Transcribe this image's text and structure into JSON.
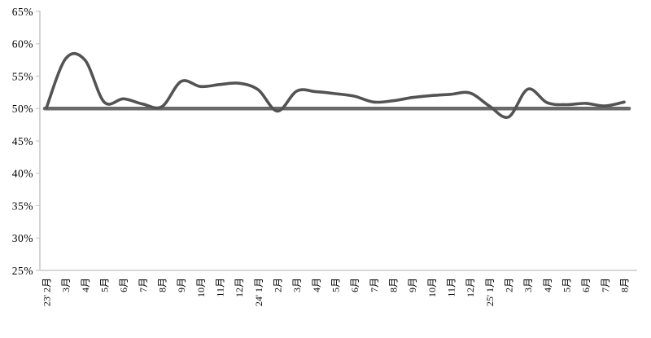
{
  "page": {
    "background": "#ffffff"
  },
  "chart_data": {
    "type": "line",
    "title": "",
    "xlabel": "",
    "ylabel": "",
    "grid": false,
    "legend": "none",
    "categories": [
      "23' 2月",
      "3月",
      "4月",
      "5月",
      "6月",
      "7月",
      "8月",
      "9月",
      "10月",
      "11月",
      "12月",
      "24' 1月",
      "2月",
      "3月",
      "4月",
      "5月",
      "6月",
      "7月",
      "8月",
      "9月",
      "10月",
      "11月",
      "12月",
      "25' 1月",
      "2月",
      "3月",
      "4月",
      "5月",
      "6月",
      "7月",
      "8月"
    ],
    "series": [
      {
        "name": "monthly-series",
        "style": "smooth",
        "color": "#535353",
        "stroke_width": 3.6,
        "values": [
          50.1,
          57.7,
          57.5,
          51.0,
          51.5,
          50.7,
          50.3,
          54.2,
          53.4,
          53.7,
          53.9,
          52.9,
          49.6,
          52.7,
          52.6,
          52.3,
          51.9,
          51.0,
          51.2,
          51.7,
          52.0,
          52.2,
          52.4,
          50.4,
          48.7,
          53.0,
          50.9,
          50.6,
          50.8,
          50.4,
          51.0
        ]
      },
      {
        "name": "reference-line-50pct",
        "style": "straight",
        "color": "#6a6a6a",
        "stroke_width": 4.6,
        "constant": 50
      }
    ],
    "y_axis": {
      "min": 25,
      "max": 65,
      "step": 5,
      "tick_labels": [
        "25%",
        "30%",
        "35%",
        "40%",
        "45%",
        "50%",
        "55%",
        "60%",
        "65%"
      ]
    },
    "axis_color": "#c8c8c8",
    "label_color": "#000000"
  }
}
